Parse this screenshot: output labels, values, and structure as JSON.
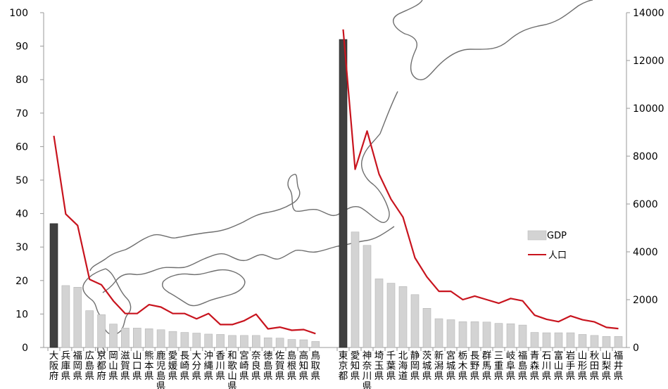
{
  "chart_data": {
    "type": "bar",
    "groups": [
      {
        "categories": [
          "大阪府",
          "兵庫県",
          "福岡県",
          "広島県",
          "京都府",
          "岡山県",
          "滋賀県",
          "山口県",
          "熊本県",
          "鹿児島県",
          "愛媛県",
          "長崎県",
          "大分県",
          "沖縄県",
          "香川県",
          "和歌山県",
          "宮崎県",
          "奈良県",
          "徳島県",
          "佐賀県",
          "島根県",
          "高知県",
          "鳥取県"
        ],
        "gdp": [
          37,
          18.5,
          18,
          11,
          9.8,
          7,
          5.8,
          5.8,
          5.6,
          5.3,
          4.8,
          4.5,
          4.3,
          4.0,
          3.9,
          3.6,
          3.6,
          3.6,
          2.9,
          2.8,
          2.4,
          2.3,
          1.8
        ],
        "population": [
          8850,
          5580,
          5100,
          2850,
          2620,
          1950,
          1420,
          1420,
          1790,
          1690,
          1420,
          1420,
          1200,
          1420,
          960,
          960,
          1120,
          1390,
          780,
          850,
          720,
          750,
          580
        ],
        "highlight_index": 0
      },
      {
        "categories": [
          "東京都",
          "愛知県",
          "神奈川県",
          "埼玉県",
          "千葉県",
          "北海道",
          "静岡県",
          "茨城県",
          "新潟県",
          "宮城県",
          "栃木県",
          "長野県",
          "群馬県",
          "三重県",
          "岐阜県",
          "福島県",
          "青森県",
          "石川県",
          "富山県",
          "岩手県",
          "山形県",
          "秋田県",
          "山梨県",
          "福井県"
        ],
        "gdp": [
          92,
          34.5,
          30.5,
          20.5,
          19.2,
          18.2,
          15.8,
          11.7,
          8.6,
          8.3,
          7.7,
          7.7,
          7.6,
          7.2,
          7.1,
          6.7,
          4.5,
          4.4,
          4.4,
          4.4,
          3.9,
          3.6,
          3.3,
          3.3
        ],
        "population": [
          13300,
          7450,
          9050,
          7250,
          6200,
          5450,
          3750,
          2950,
          2350,
          2350,
          2000,
          2150,
          2000,
          1850,
          2050,
          1950,
          1350,
          1180,
          1080,
          1320,
          1160,
          1070,
          840,
          790
        ],
        "highlight_index": 0
      }
    ],
    "y_left": {
      "min": 0,
      "max": 100,
      "ticks": [
        "0",
        "10",
        "20",
        "30",
        "40",
        "50",
        "60",
        "70",
        "80",
        "90",
        "100"
      ]
    },
    "y_right": {
      "min": 0,
      "max": 14000,
      "ticks": [
        "0",
        "2000",
        "4000",
        "6000",
        "8000",
        "10000",
        "12000",
        "14000"
      ]
    },
    "series": [
      {
        "name": "GDP",
        "type": "bar"
      },
      {
        "name": "人口",
        "type": "line"
      }
    ],
    "legend_placement": "right",
    "grid": false,
    "background": "outline map of Japan"
  },
  "colors": {
    "bar": "#d3d3d3",
    "bar_highlight": "#404040",
    "line": "#c8141e",
    "map": "#6e6e6e",
    "axis": "#999999"
  }
}
